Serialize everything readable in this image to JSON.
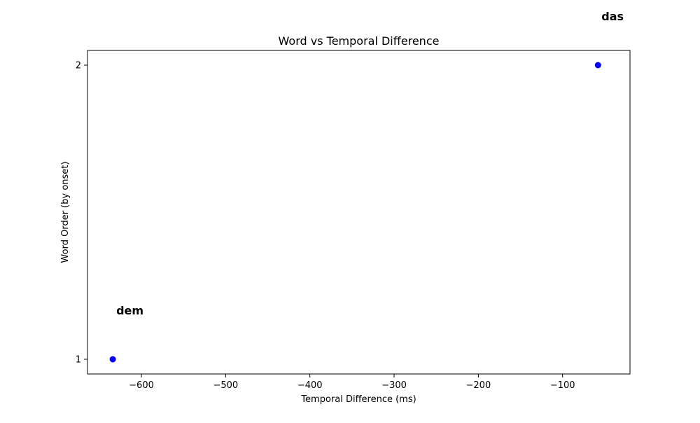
{
  "chart_data": {
    "type": "scatter",
    "title": "Word vs Temporal Difference",
    "xlabel": "Temporal Difference (ms)",
    "ylabel": "Word Order (by onset)",
    "xlim": [
      -664,
      -20
    ],
    "ylim": [
      0.95,
      2.05
    ],
    "x_ticks": [
      -600,
      -500,
      -400,
      -300,
      -200,
      -100
    ],
    "x_tick_labels": [
      "−600",
      "−500",
      "−400",
      "−300",
      "−200",
      "−100"
    ],
    "y_ticks": [
      1,
      2
    ],
    "y_tick_labels": [
      "1",
      "2"
    ],
    "grid": false,
    "legend": "none",
    "marker_color": "#0000ff",
    "points": [
      {
        "x": -634,
        "y": 1,
        "label": "dem"
      },
      {
        "x": -58,
        "y": 2,
        "label": "das"
      }
    ]
  }
}
